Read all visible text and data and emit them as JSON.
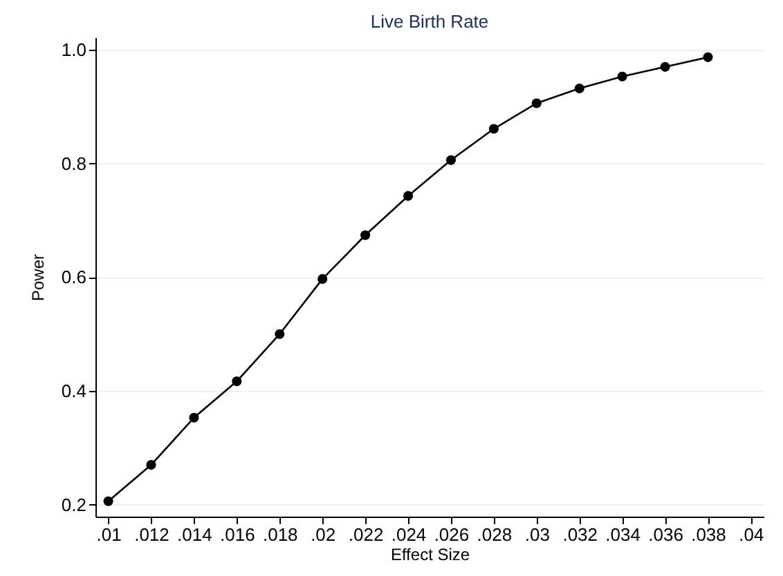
{
  "chart_data": {
    "type": "line",
    "title": "Live Birth Rate",
    "xlabel": "Effect Size",
    "ylabel": "Power",
    "x": [
      0.01,
      0.012,
      0.014,
      0.016,
      0.018,
      0.02,
      0.022,
      0.024,
      0.026,
      0.028,
      0.03,
      0.032,
      0.034,
      0.036,
      0.038
    ],
    "series": [
      {
        "color": "#000000",
        "values": [
          0.206,
          0.27,
          0.353,
          0.417,
          0.5,
          0.597,
          0.674,
          0.743,
          0.806,
          0.861,
          0.906,
          0.932,
          0.953,
          0.97,
          0.987
        ]
      }
    ],
    "xlim": [
      0.0094,
      0.0406
    ],
    "xticks": [
      {
        "value": 0.01,
        "label": ".01"
      },
      {
        "value": 0.012,
        "label": ".012"
      },
      {
        "value": 0.014,
        "label": ".014"
      },
      {
        "value": 0.016,
        "label": ".016"
      },
      {
        "value": 0.018,
        "label": ".018"
      },
      {
        "value": 0.02,
        "label": ".02"
      },
      {
        "value": 0.022,
        "label": ".022"
      },
      {
        "value": 0.024,
        "label": ".024"
      },
      {
        "value": 0.026,
        "label": ".026"
      },
      {
        "value": 0.028,
        "label": ".028"
      },
      {
        "value": 0.03,
        "label": ".03"
      },
      {
        "value": 0.032,
        "label": ".032"
      },
      {
        "value": 0.034,
        "label": ".034"
      },
      {
        "value": 0.036,
        "label": ".036"
      },
      {
        "value": 0.038,
        "label": ".038"
      },
      {
        "value": 0.04,
        "label": ".04"
      }
    ],
    "ylim": [
      0.179,
      1.022
    ],
    "yticks": [
      0.2,
      0.4,
      0.6,
      0.8,
      {
        "value": 1,
        "label": "1.0"
      }
    ],
    "grid": "y",
    "marker": "circle",
    "line_style": "solid"
  }
}
